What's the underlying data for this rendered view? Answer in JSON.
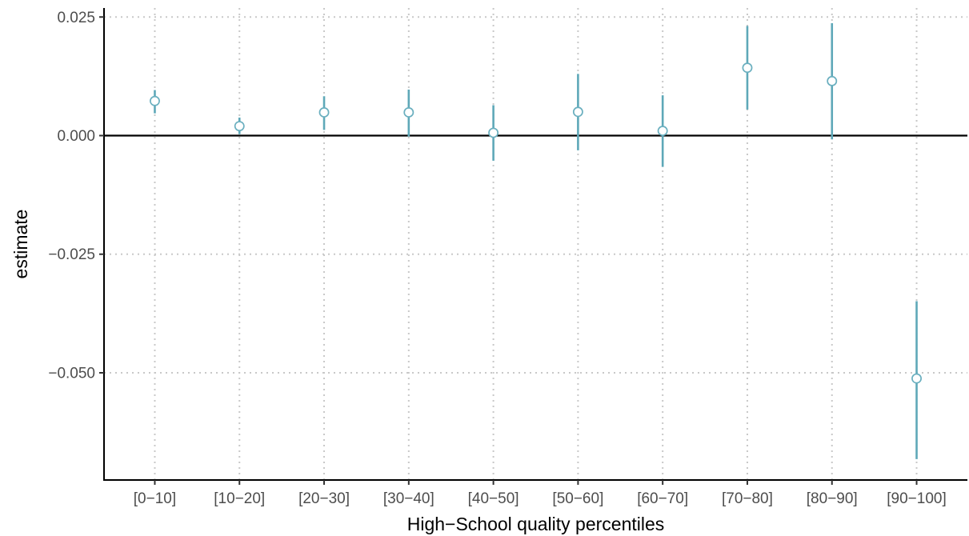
{
  "chart_data": {
    "type": "scatter",
    "title": "",
    "xlabel": "High−School quality percentiles",
    "ylabel": "estimate",
    "categories": [
      "[0−10]",
      "[10−20]",
      "[20−30]",
      "[30−40]",
      "[40−50]",
      "[50−60]",
      "[60−70]",
      "[70−80]",
      "[80−90]",
      "[90−100]"
    ],
    "series": [
      {
        "values": [
          0.0073,
          0.002,
          0.0049,
          0.0049,
          0.0006,
          0.005,
          0.001,
          0.0143,
          0.0115,
          -0.0512
        ],
        "lower": [
          0.0047,
          0.0003,
          0.0012,
          -0.0002,
          -0.0053,
          -0.0031,
          -0.0066,
          0.0055,
          -0.0008,
          -0.0682
        ],
        "upper": [
          0.0096,
          0.0038,
          0.0083,
          0.0097,
          0.0064,
          0.013,
          0.0085,
          0.0231,
          0.0237,
          -0.0349
        ]
      }
    ],
    "ylim": [
      -0.0726,
      0.0269
    ],
    "yticks": [
      0.025,
      0.0,
      -0.025,
      -0.05
    ],
    "ytick_labels": [
      "0.025",
      "0.000",
      "−0.025",
      "−0.050"
    ],
    "reference_line": 0,
    "grid": "dotted",
    "legend": "none",
    "colors": {
      "point": "#6aafbf",
      "errorbar": "#5ea8b8",
      "reference_line": "#000000",
      "grid": "#c8c8c8"
    }
  }
}
